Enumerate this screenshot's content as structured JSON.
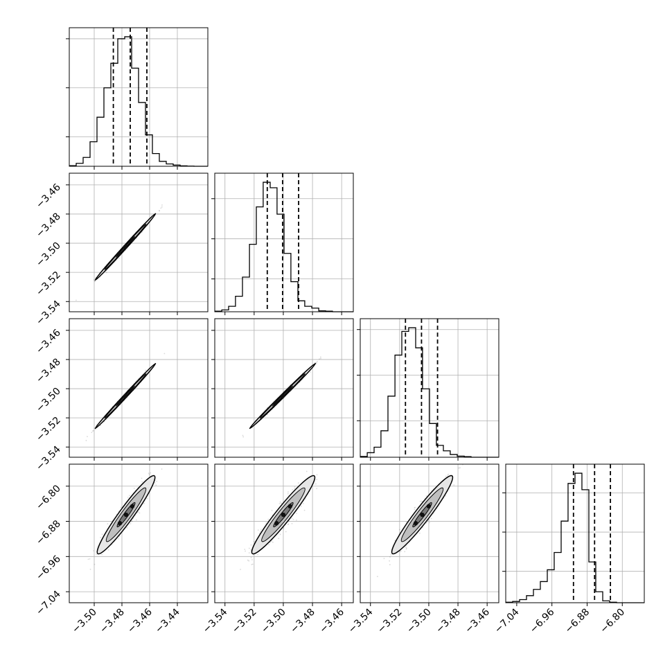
{
  "chart_data": {
    "type": "corner",
    "n_params": 4,
    "grid": true,
    "tick_labels": [
      [
        "−3.50",
        "−3.48",
        "−3.46",
        "−3.44"
      ],
      [
        "−3.54",
        "−3.52",
        "−3.50",
        "−3.48",
        "−3.46"
      ],
      [
        "−3.54",
        "−3.52",
        "−3.50",
        "−3.48",
        "−3.46"
      ],
      [
        "−7.04",
        "−6.96",
        "−6.88",
        "−6.80"
      ]
    ],
    "y_tick_labels": [
      [],
      [
        "−3.46",
        "−3.48",
        "−3.50",
        "−3.52",
        "−3.54"
      ],
      [
        "−3.46",
        "−3.48",
        "−3.50",
        "−3.52",
        "−3.54"
      ],
      [
        "−6.80",
        "−6.88",
        "−6.96",
        "−7.04"
      ]
    ],
    "axis_ranges": [
      [
        -3.518,
        -3.418
      ],
      [
        -3.547,
        -3.452
      ],
      [
        -3.547,
        -3.452
      ],
      [
        -7.065,
        -6.75
      ]
    ],
    "ticks": [
      [
        -3.5,
        -3.48,
        -3.46,
        -3.44
      ],
      [
        -3.54,
        -3.52,
        -3.5,
        -3.48,
        -3.46
      ],
      [
        -3.54,
        -3.52,
        -3.5,
        -3.48,
        -3.46
      ],
      [
        -7.04,
        -6.96,
        -6.88,
        -6.8
      ]
    ],
    "histograms": [
      {
        "bin_edges": [
          -3.518,
          -3.513,
          -3.508,
          -3.503,
          -3.498,
          -3.493,
          -3.488,
          -3.483,
          -3.478,
          -3.473,
          -3.468,
          -3.463,
          -3.458,
          -3.453,
          -3.448,
          -3.443,
          -3.438,
          -3.433,
          -3.428,
          -3.423,
          -3.418
        ],
        "counts": [
          0.3,
          1.5,
          4.5,
          12.5,
          25.0,
          40.0,
          52.5,
          65.0,
          66.0,
          50.0,
          32.5,
          16.0,
          6.5,
          2.5,
          1.2,
          0.6,
          0.2,
          0.1,
          0.0,
          0.0
        ],
        "quantile_lines": [
          -3.4862,
          -3.474,
          -3.462
        ],
        "yticks": [
          15,
          40,
          65
        ]
      },
      {
        "bin_edges": [
          -3.547,
          -3.5422,
          -3.5375,
          -3.5328,
          -3.528,
          -3.5232,
          -3.5185,
          -3.5138,
          -3.509,
          -3.5043,
          -3.4995,
          -3.4948,
          -3.49,
          -3.4853,
          -3.4805,
          -3.4757,
          -3.471,
          -3.4663,
          -3.4615,
          -3.4567,
          -3.452
        ],
        "counts": [
          0.3,
          1.0,
          3.0,
          8.5,
          19.0,
          37.0,
          57.5,
          71.0,
          68.0,
          53.5,
          32.0,
          16.5,
          6.0,
          3.0,
          2.0,
          0.5,
          0.3,
          0.0,
          0.0,
          0.0
        ],
        "quantile_lines": [
          -3.511,
          -3.5005,
          -3.4895
        ],
        "yticks": [
          18,
          40,
          62
        ]
      },
      {
        "bin_edges": [
          -3.547,
          -3.5422,
          -3.5375,
          -3.5328,
          -3.528,
          -3.5232,
          -3.5185,
          -3.5138,
          -3.509,
          -3.5043,
          -3.4995,
          -3.4948,
          -3.49,
          -3.4853,
          -3.4805,
          -3.4757,
          -3.471,
          -3.4663,
          -3.4615,
          -3.4567,
          -3.452
        ],
        "counts": [
          0.4,
          2.5,
          5.5,
          14.5,
          33.5,
          56.0,
          69.0,
          71.0,
          60.0,
          37.5,
          18.5,
          6.5,
          3.5,
          1.5,
          0.6,
          0.3,
          0.0,
          0.0,
          0.0,
          0.0
        ],
        "quantile_lines": [
          -3.516,
          -3.505,
          -3.494
        ],
        "yticks": [
          20,
          45,
          70
        ]
      },
      {
        "bin_edges": [
          -7.065,
          -7.0493,
          -7.0335,
          -7.0178,
          -7.002,
          -6.9863,
          -6.9705,
          -6.9548,
          -6.939,
          -6.9233,
          -6.9075,
          -6.8918,
          -6.876,
          -6.8603,
          -6.8445,
          -6.8288,
          -6.813,
          -6.7973,
          -6.7815,
          -6.7658,
          -6.75
        ],
        "counts": [
          0.3,
          0.8,
          2.0,
          4.5,
          8.5,
          13.5,
          21.0,
          32.0,
          52.0,
          76.0,
          82.5,
          72.0,
          26.0,
          7.0,
          1.2,
          0.3,
          0.0,
          0.0,
          0.0,
          0.0
        ],
        "quantile_lines": [
          -6.911,
          -6.863,
          -6.827
        ],
        "yticks": [
          20,
          45,
          70
        ]
      }
    ],
    "joint_2d": [
      {
        "row": 1,
        "col": 0,
        "center": [
          -3.4775,
          -3.5025
        ],
        "sd": [
          0.0088,
          0.0092
        ],
        "rho": 0.996
      },
      {
        "row": 2,
        "col": 0,
        "center": [
          -3.4775,
          -3.505
        ],
        "sd": [
          0.0088,
          0.009
        ],
        "rho": 0.996
      },
      {
        "row": 2,
        "col": 1,
        "center": [
          -3.5005,
          -3.505
        ],
        "sd": [
          0.0091,
          0.009
        ],
        "rho": 0.996
      },
      {
        "row": 3,
        "col": 0,
        "center": [
          -3.477,
          -6.865
        ],
        "sd": [
          0.0085,
          0.036
        ],
        "rho": 0.93
      },
      {
        "row": 3,
        "col": 1,
        "center": [
          -3.5,
          -6.865
        ],
        "sd": [
          0.0088,
          0.036
        ],
        "rho": 0.93
      },
      {
        "row": 3,
        "col": 2,
        "center": [
          -3.5045,
          -6.865
        ],
        "sd": [
          0.0085,
          0.036
        ],
        "rho": 0.93
      }
    ],
    "contour_levels": [
      0.5,
      1.1,
      1.6
    ]
  },
  "colors": {
    "axes": "#000000",
    "grid": "#b0b0b0",
    "scatter": "#555555",
    "contour_fill_outer": "#e6e6e6",
    "contour_fill_mid": "#bfbfbf",
    "contour_fill_inner": "#7a7a7a",
    "core": "#111111"
  }
}
